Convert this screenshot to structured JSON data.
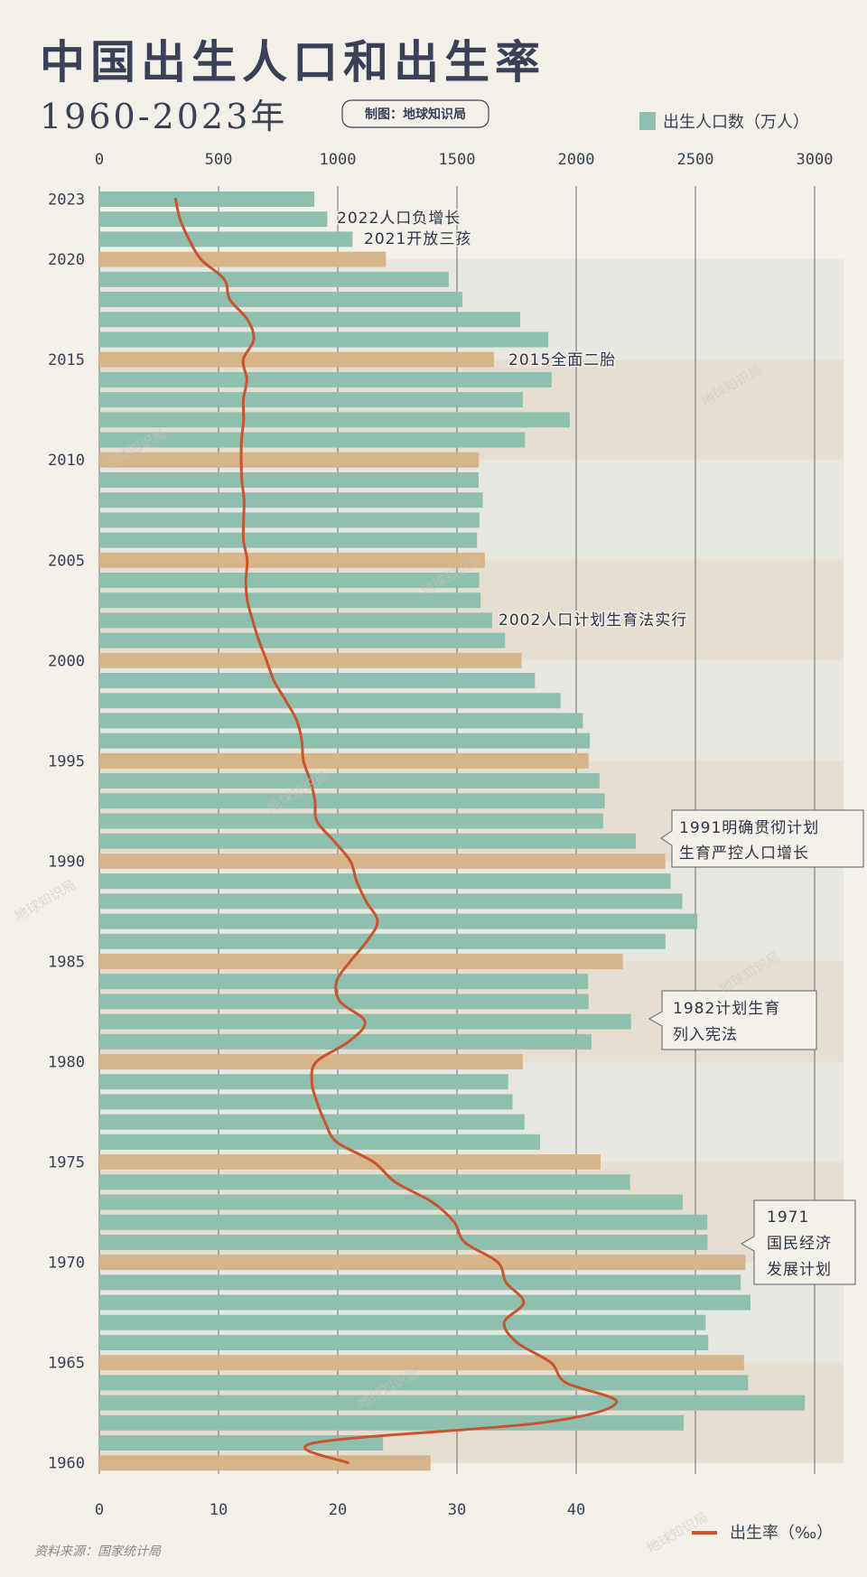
{
  "header": {
    "title": "中国出生人口和出生率",
    "subtitle": "1960-2023年",
    "credit": "制图：地球知识局"
  },
  "legend": {
    "births": "出生人口数（万人）",
    "rate": "出生率（‰）"
  },
  "source": "资料来源：国家统计局",
  "watermark": "地球知识局",
  "colors": {
    "background": "#f3f0e9",
    "bar": "#8fbfae",
    "bar_highlight": "#d6b58a",
    "line": "#c9552f",
    "band_a": "#e7e7e1",
    "band_b": "#e6dfd1",
    "text": "#3a4057"
  },
  "annotations": {
    "a2022": "2022人口负增长",
    "a2021": "2021开放三孩",
    "a2015": "2015全面二胎",
    "a2002": "2002人口计划生育法实行",
    "a1991": [
      "1991明确贯彻计划",
      "生育严控人口增长"
    ],
    "a1982": [
      "1982计划生育",
      "列入宪法"
    ],
    "a1971": [
      "1971",
      "国民经济",
      "发展计划"
    ]
  },
  "chart_data": {
    "type": "bar",
    "orientation": "horizontal",
    "title": "中国出生人口和出生率",
    "subtitle": "1960-2023年",
    "year_labels": [
      "2023",
      "2020",
      "2015",
      "2010",
      "2005",
      "2000",
      "1995",
      "1990",
      "1985",
      "1980",
      "1975",
      "1970",
      "1965",
      "1960"
    ],
    "top_axis": {
      "label": "出生人口数（万人）",
      "range": [
        0,
        3000
      ],
      "ticks": [
        "0",
        "500",
        "1000",
        "1500",
        "2000",
        "2500",
        "3000"
      ]
    },
    "bottom_axis": {
      "label": "出生率（‰）",
      "range": [
        0,
        60
      ],
      "ticks": [
        "0",
        "10",
        "20",
        "30",
        "40"
      ]
    },
    "grid": true,
    "years": [
      2023,
      2022,
      2021,
      2020,
      2019,
      2018,
      2017,
      2016,
      2015,
      2014,
      2013,
      2012,
      2011,
      2010,
      2009,
      2008,
      2007,
      2006,
      2005,
      2004,
      2003,
      2002,
      2001,
      2000,
      1999,
      1998,
      1997,
      1996,
      1995,
      1994,
      1993,
      1992,
      1991,
      1990,
      1989,
      1988,
      1987,
      1986,
      1985,
      1984,
      1983,
      1982,
      1981,
      1980,
      1979,
      1978,
      1977,
      1976,
      1975,
      1974,
      1973,
      1972,
      1971,
      1970,
      1969,
      1968,
      1967,
      1966,
      1965,
      1964,
      1963,
      1962,
      1961,
      1960
    ],
    "series": [
      {
        "name": "出生人口数（万人）",
        "type": "bar",
        "values": [
          902,
          956,
          1062,
          1202,
          1465,
          1523,
          1765,
          1883,
          1655,
          1897,
          1776,
          1973,
          1785,
          1592,
          1591,
          1608,
          1594,
          1584,
          1617,
          1593,
          1599,
          1647,
          1702,
          1771,
          1827,
          1934,
          2028,
          2057,
          2052,
          2098,
          2120,
          2113,
          2250,
          2374,
          2396,
          2445,
          2508,
          2374,
          2196,
          2050,
          2052,
          2230,
          2064,
          1776,
          1715,
          1733,
          1783,
          1849,
          2102,
          2226,
          2447,
          2550,
          2551,
          2710,
          2690,
          2731,
          2543,
          2554,
          2704,
          2721,
          2959,
          2451,
          1190,
          1389
        ]
      },
      {
        "name": "出生率（‰）",
        "type": "line",
        "values": [
          6.39,
          6.77,
          7.52,
          8.52,
          10.48,
          10.94,
          12.43,
          12.95,
          12.07,
          12.37,
          12.08,
          12.1,
          11.93,
          11.9,
          11.95,
          12.14,
          12.1,
          12.09,
          12.4,
          12.29,
          12.41,
          12.86,
          13.38,
          14.03,
          14.64,
          15.64,
          16.57,
          16.98,
          17.12,
          17.7,
          18.09,
          18.24,
          19.68,
          21.06,
          21.58,
          22.37,
          23.33,
          22.43,
          21.04,
          19.9,
          20.19,
          22.28,
          20.91,
          18.21,
          17.82,
          18.25,
          18.93,
          19.91,
          23.01,
          24.82,
          27.93,
          29.77,
          30.65,
          33.43,
          34.11,
          35.59,
          33.96,
          35.05,
          37.88,
          39.14,
          43.37,
          37.01,
          18.02,
          20.86
        ]
      }
    ],
    "highlight_years": "every 5th year (1960, 1965, ..., 2020)"
  }
}
